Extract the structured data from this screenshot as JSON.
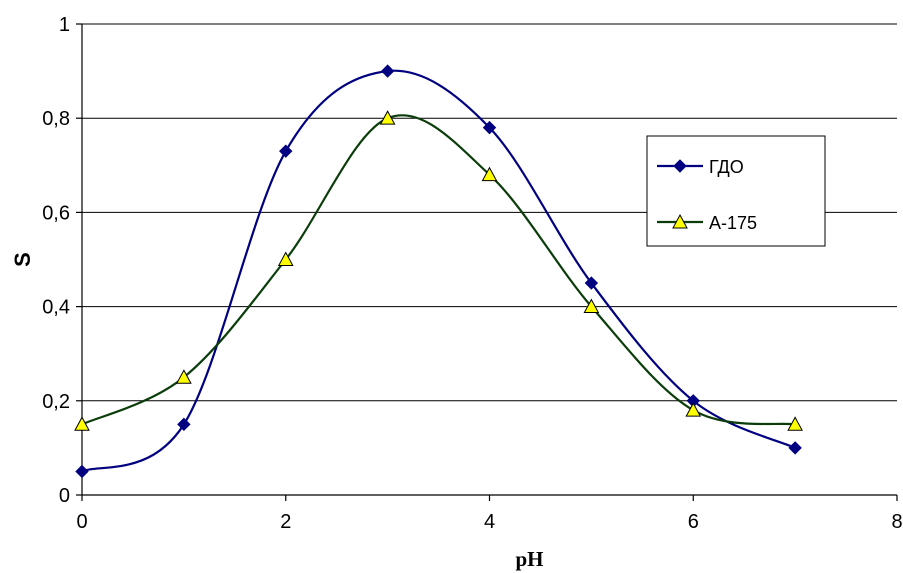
{
  "chart_data": {
    "type": "line",
    "xlabel": "pH",
    "ylabel": "S",
    "xlim": [
      0,
      8
    ],
    "ylim": [
      0,
      1
    ],
    "x_ticks": [
      0,
      2,
      4,
      6,
      8
    ],
    "x_tick_labels": [
      "0",
      "2",
      "4",
      "6",
      "8"
    ],
    "y_ticks": [
      0,
      0.2,
      0.4,
      0.6,
      0.8,
      1
    ],
    "y_tick_labels": [
      "0",
      "0,2",
      "0,4",
      "0,6",
      "0,8",
      "1"
    ],
    "grid": "horizontal",
    "legend_position": "right",
    "smooth": true,
    "series": [
      {
        "name": "ГДО",
        "color": "#000080",
        "marker": "diamond",
        "marker_color": "#000080",
        "x": [
          0,
          1,
          2,
          3,
          4,
          5,
          6,
          7
        ],
        "values": [
          0.05,
          0.15,
          0.73,
          0.9,
          0.78,
          0.45,
          0.2,
          0.1
        ]
      },
      {
        "name": "А-175",
        "color": "#0b3d0b",
        "marker": "triangle",
        "marker_color": "#ffff00",
        "x": [
          0,
          1,
          2,
          3,
          4,
          5,
          6,
          7
        ],
        "values": [
          0.15,
          0.25,
          0.5,
          0.8,
          0.68,
          0.4,
          0.18,
          0.15
        ]
      }
    ]
  }
}
